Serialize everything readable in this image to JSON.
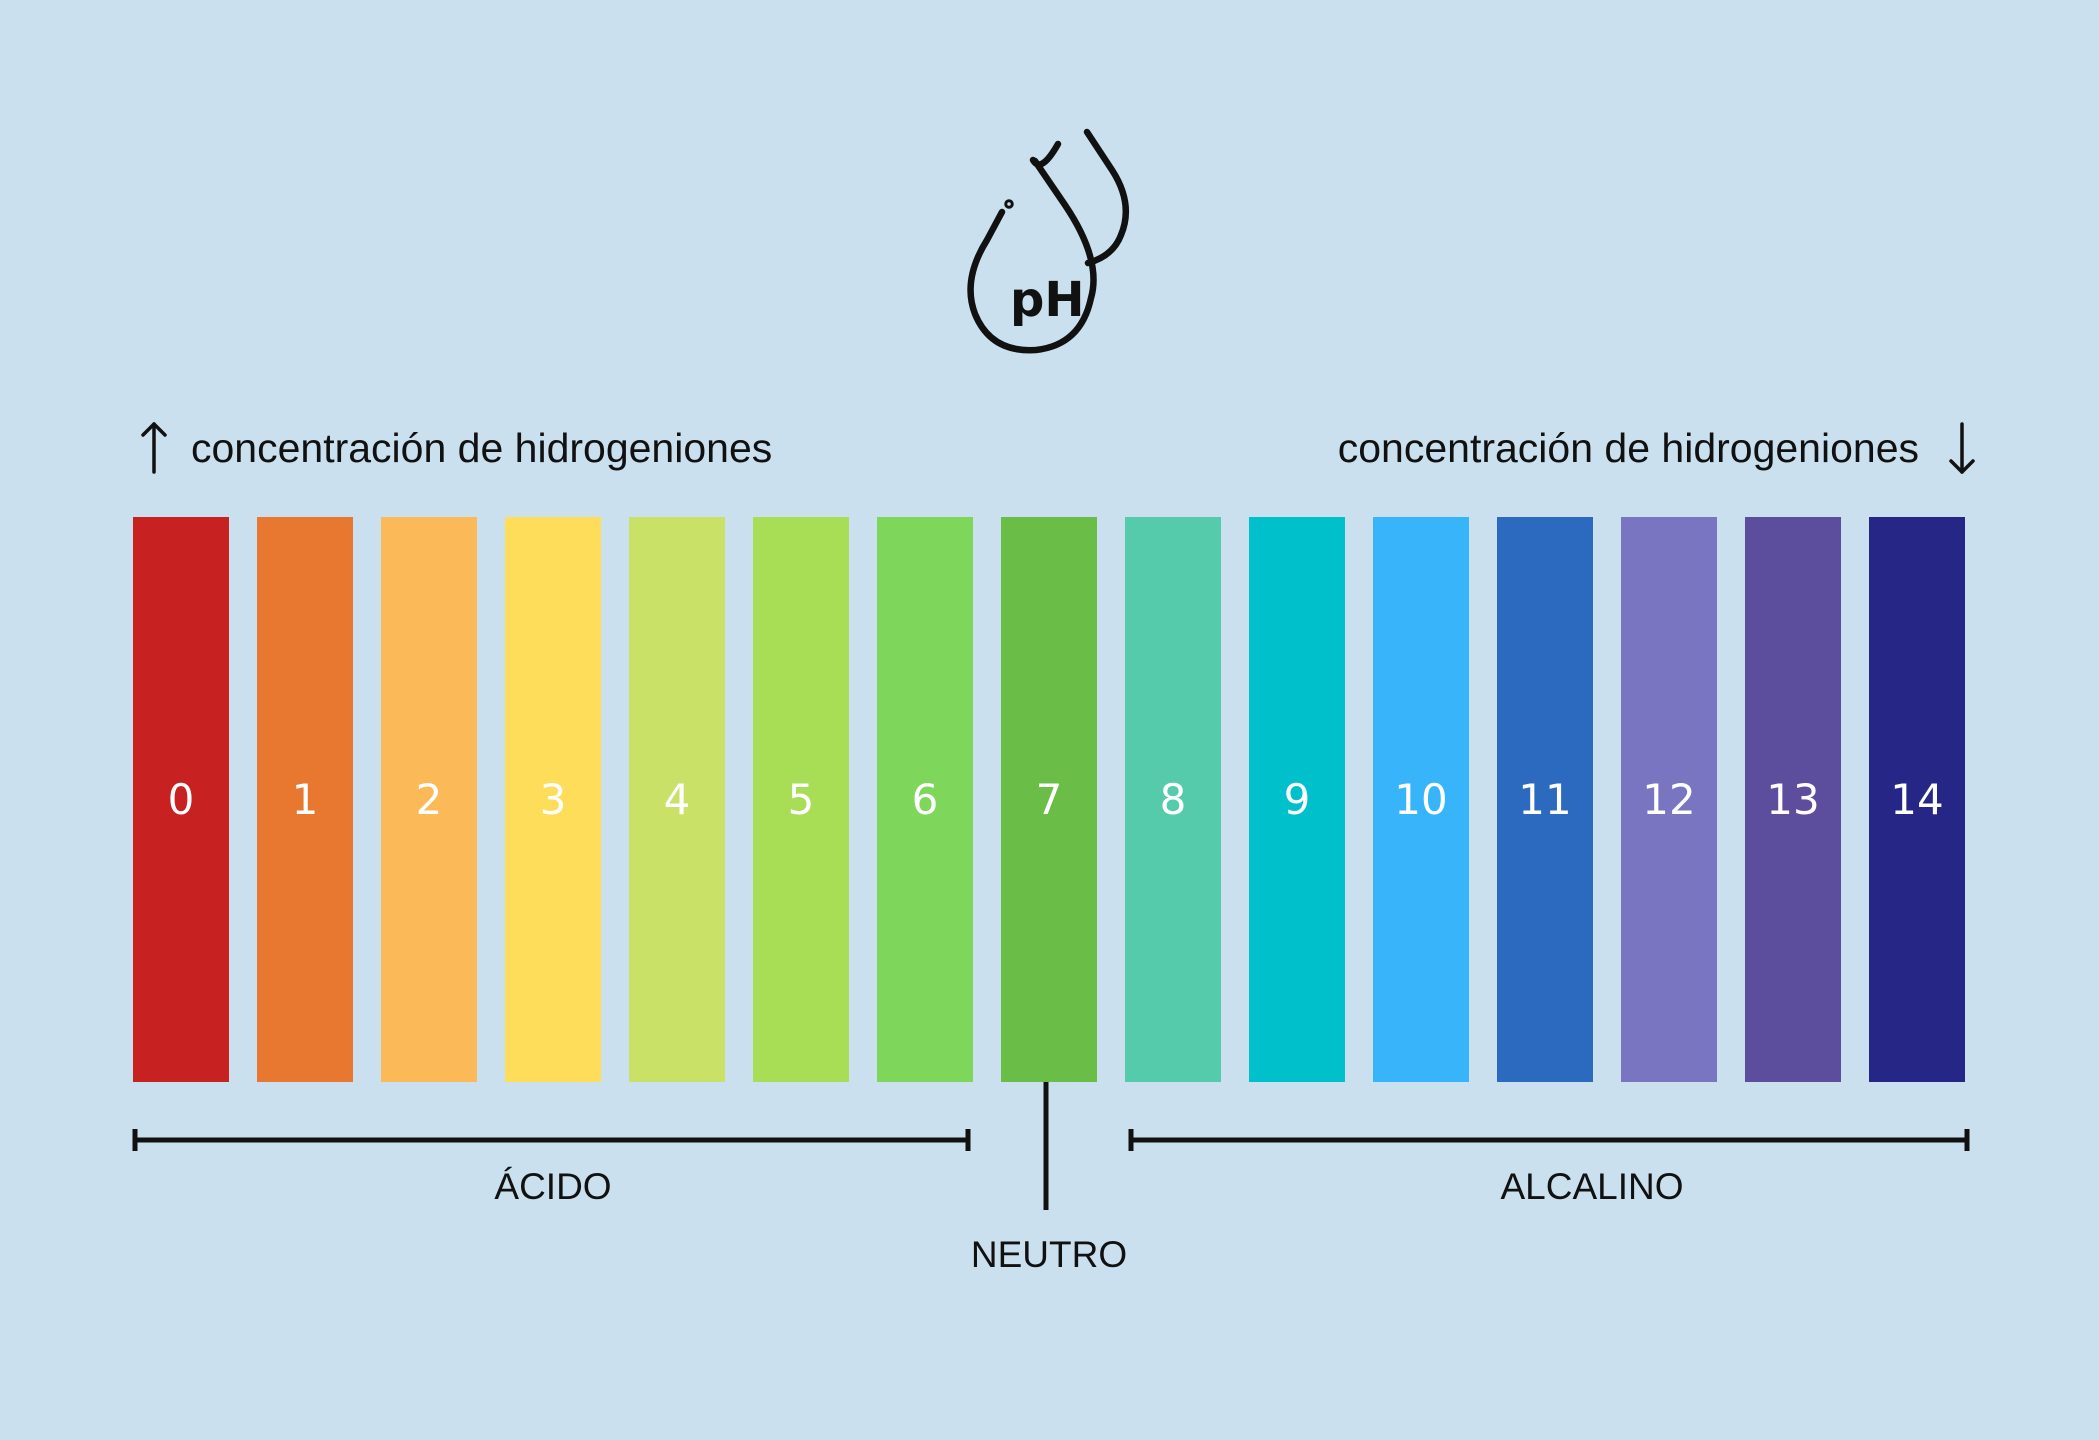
{
  "icon": {
    "name": "ph-drops-icon",
    "text": "pH"
  },
  "hints": {
    "left": {
      "arrow_icon": "arrow-up-icon",
      "text": "concentración de hidrogeniones"
    },
    "right": {
      "arrow_icon": "arrow-down-icon",
      "text": "concentración de hidrogeniones"
    }
  },
  "scale": [
    {
      "value": "0",
      "color": "#c82121"
    },
    {
      "value": "1",
      "color": "#e87730"
    },
    {
      "value": "2",
      "color": "#fcb957"
    },
    {
      "value": "3",
      "color": "#fedd5b"
    },
    {
      "value": "4",
      "color": "#cae168"
    },
    {
      "value": "5",
      "color": "#a8de55"
    },
    {
      "value": "6",
      "color": "#7ed65b"
    },
    {
      "value": "7",
      "color": "#6abe47"
    },
    {
      "value": "8",
      "color": "#56cbab"
    },
    {
      "value": "9",
      "color": "#00c0cb"
    },
    {
      "value": "10",
      "color": "#38b4fb"
    },
    {
      "value": "11",
      "color": "#2c6abf"
    },
    {
      "value": "12",
      "color": "#7975c1"
    },
    {
      "value": "13",
      "color": "#5c4e9c"
    },
    {
      "value": "14",
      "color": "#262687"
    }
  ],
  "zones": {
    "acid": "ÁCIDO",
    "neutral": "NEUTRO",
    "alkaline": "ALCALINO"
  }
}
